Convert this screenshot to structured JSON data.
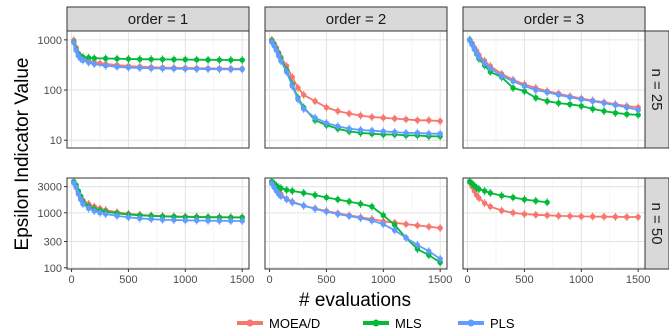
{
  "chart_data": {
    "type": "line",
    "ylabel": "Epsilon Indicator Value",
    "xlabel": "# evaluations",
    "y_scale": "log",
    "x_ticks": [
      "0",
      "500",
      "1000",
      "1500"
    ],
    "col_strips": [
      "order = 1",
      "order = 2",
      "order = 3"
    ],
    "row_strips": [
      "n = 25",
      "n = 50"
    ],
    "rows": [
      {
        "ylim": [
          7,
          1500
        ],
        "y_ticks": [
          10,
          100,
          1000
        ],
        "y_tick_labels": [
          "10",
          "100",
          "1000"
        ]
      },
      {
        "ylim": [
          95,
          4300
        ],
        "y_ticks": [
          100,
          300,
          1000,
          3000
        ],
        "y_tick_labels": [
          "100",
          "300",
          "1000",
          "3000"
        ]
      }
    ],
    "xlim": [
      -40,
      1560
    ],
    "legend": {
      "position": "bottom",
      "entries": [
        "MOEA/D",
        "MLS",
        "PLS"
      ]
    },
    "colors": {
      "MOEA/D": "#F8766D",
      "MLS": "#00BA38",
      "PLS": "#619CFF"
    },
    "panels": [
      {
        "row": 0,
        "col": 0,
        "series": [
          {
            "name": "MOEA/D",
            "x": [
              20,
              40,
              60,
              80,
              100,
              150,
              200,
              250,
              300,
              400,
              500,
              600,
              700,
              800,
              900,
              1000,
              1100,
              1200,
              1300,
              1400,
              1500
            ],
            "y": [
              980,
              700,
              540,
              460,
              420,
              380,
              355,
              340,
              330,
              315,
              300,
              292,
              285,
              280,
              277,
              275,
              272,
              270,
              268,
              266,
              265
            ]
          },
          {
            "name": "MLS",
            "x": [
              20,
              40,
              60,
              80,
              100,
              150,
              200,
              300,
              400,
              500,
              600,
              700,
              800,
              900,
              1000,
              1100,
              1200,
              1300,
              1400,
              1500
            ],
            "y": [
              900,
              650,
              520,
              470,
              450,
              440,
              430,
              425,
              420,
              415,
              412,
              410,
              408,
              406,
              404,
              402,
              400,
              398,
              396,
              395
            ]
          },
          {
            "name": "PLS",
            "x": [
              20,
              40,
              60,
              80,
              100,
              150,
              200,
              300,
              400,
              500,
              600,
              700,
              800,
              900,
              1000,
              1100,
              1200,
              1300,
              1400,
              1500
            ],
            "y": [
              880,
              620,
              480,
              420,
              390,
              355,
              330,
              305,
              290,
              280,
              275,
              270,
              268,
              266,
              264,
              262,
              261,
              260,
              259,
              258
            ]
          }
        ]
      },
      {
        "row": 0,
        "col": 1,
        "series": [
          {
            "name": "MOEA/D",
            "x": [
              20,
              40,
              60,
              80,
              100,
              150,
              200,
              250,
              300,
              400,
              500,
              600,
              700,
              800,
              900,
              1000,
              1100,
              1200,
              1300,
              1400,
              1500
            ],
            "y": [
              1000,
              850,
              700,
              560,
              450,
              300,
              180,
              110,
              80,
              60,
              45,
              38,
              34,
              31,
              29,
              28,
              27,
              26,
              25,
              25,
              24
            ]
          },
          {
            "name": "MLS",
            "x": [
              20,
              40,
              60,
              80,
              100,
              150,
              200,
              250,
              300,
              400,
              500,
              600,
              700,
              800,
              900,
              1000,
              1100,
              1200,
              1300,
              1400,
              1500
            ],
            "y": [
              950,
              800,
              650,
              520,
              420,
              250,
              130,
              70,
              45,
              25,
              20,
              17,
              15,
              14,
              13.5,
              13,
              13,
              12.5,
              12.5,
              12,
              12
            ]
          },
          {
            "name": "PLS",
            "x": [
              20,
              40,
              60,
              80,
              100,
              150,
              200,
              250,
              300,
              400,
              500,
              600,
              700,
              800,
              900,
              1000,
              1100,
              1200,
              1300,
              1400,
              1500
            ],
            "y": [
              900,
              760,
              620,
              480,
              380,
              230,
              120,
              65,
              42,
              28,
              22,
              19,
              17,
              16,
              15.5,
              15,
              14.5,
              14,
              14,
              13.5,
              13.5
            ]
          }
        ]
      },
      {
        "row": 0,
        "col": 2,
        "series": [
          {
            "name": "MOEA/D",
            "x": [
              20,
              40,
              60,
              80,
              100,
              150,
              200,
              300,
              400,
              500,
              600,
              700,
              800,
              900,
              1000,
              1100,
              1200,
              1300,
              1400,
              1500
            ],
            "y": [
              1000,
              850,
              700,
              600,
              500,
              380,
              300,
              210,
              160,
              130,
              110,
              95,
              85,
              75,
              68,
              62,
              57,
              52,
              48,
              45
            ]
          },
          {
            "name": "MLS",
            "x": [
              20,
              40,
              60,
              80,
              100,
              150,
              200,
              300,
              400,
              500,
              600,
              700,
              800,
              900,
              1000,
              1100,
              1200,
              1300,
              1400,
              1500
            ],
            "y": [
              1000,
              820,
              650,
              520,
              420,
              310,
              230,
              180,
              110,
              95,
              70,
              60,
              55,
              52,
              48,
              42,
              38,
              35,
              33,
              32
            ]
          },
          {
            "name": "PLS",
            "x": [
              20,
              40,
              60,
              80,
              100,
              150,
              200,
              300,
              400,
              500,
              600,
              700,
              800,
              900,
              1000,
              1100,
              1200,
              1300,
              1400,
              1500
            ],
            "y": [
              980,
              800,
              660,
              540,
              450,
              340,
              270,
              190,
              150,
              120,
              100,
              90,
              80,
              72,
              65,
              60,
              55,
              50,
              45,
              40
            ]
          }
        ]
      },
      {
        "row": 1,
        "col": 0,
        "series": [
          {
            "name": "MOEA/D",
            "x": [
              20,
              40,
              60,
              80,
              100,
              150,
              200,
              250,
              300,
              400,
              500,
              600,
              700,
              800,
              900,
              1000,
              1100,
              1200,
              1300,
              1400,
              1500
            ],
            "y": [
              3600,
              3100,
              2400,
              2000,
              1700,
              1450,
              1300,
              1200,
              1120,
              1020,
              960,
              920,
              890,
              870,
              860,
              850,
              845,
              840,
              835,
              830,
              828
            ]
          },
          {
            "name": "MLS",
            "x": [
              20,
              40,
              60,
              80,
              100,
              150,
              200,
              250,
              300,
              400,
              500,
              600,
              700,
              800,
              900,
              1000,
              1100,
              1200,
              1300,
              1400,
              1500
            ],
            "y": [
              3700,
              3200,
              2500,
              2000,
              1600,
              1300,
              1180,
              1100,
              1050,
              980,
              930,
              900,
              880,
              860,
              850,
              840,
              835,
              830,
              828,
              825,
              822
            ]
          },
          {
            "name": "PLS",
            "x": [
              20,
              40,
              60,
              80,
              100,
              150,
              200,
              250,
              300,
              400,
              500,
              600,
              700,
              800,
              900,
              1000,
              1100,
              1200,
              1300,
              1400,
              1500
            ],
            "y": [
              3500,
              2900,
              2200,
              1750,
              1450,
              1200,
              1080,
              1000,
              950,
              880,
              830,
              790,
              770,
              750,
              740,
              730,
              725,
              720,
              715,
              712,
              710
            ]
          }
        ]
      },
      {
        "row": 1,
        "col": 1,
        "series": [
          {
            "name": "MOEA/D",
            "x": [
              20,
              40,
              60,
              80,
              100,
              150,
              200,
              300,
              400,
              500,
              600,
              700,
              800,
              900,
              1000,
              1100,
              1200,
              1300,
              1400,
              1500
            ],
            "y": [
              3600,
              3100,
              2700,
              2400,
              2200,
              1800,
              1600,
              1350,
              1200,
              1080,
              980,
              900,
              830,
              770,
              700,
              660,
              620,
              590,
              560,
              530
            ]
          },
          {
            "name": "MLS",
            "x": [
              20,
              40,
              60,
              80,
              100,
              150,
              200,
              300,
              400,
              500,
              600,
              700,
              800,
              900,
              1000,
              1100,
              1200,
              1300,
              1400,
              1500
            ],
            "y": [
              3700,
              3400,
              3100,
              2900,
              2800,
              2600,
              2500,
              2300,
              2100,
              1900,
              1750,
              1600,
              1450,
              1300,
              900,
              600,
              350,
              220,
              170,
              125
            ]
          },
          {
            "name": "PLS",
            "x": [
              20,
              40,
              60,
              80,
              100,
              150,
              200,
              300,
              400,
              500,
              600,
              700,
              800,
              900,
              1000,
              1100,
              1200,
              1300,
              1400,
              1500
            ],
            "y": [
              3400,
              2900,
              2500,
              2200,
              2000,
              1750,
              1550,
              1350,
              1180,
              1050,
              950,
              870,
              800,
              720,
              620,
              480,
              350,
              260,
              200,
              145
            ]
          }
        ]
      },
      {
        "row": 1,
        "col": 2,
        "series": [
          {
            "name": "MOEA/D",
            "x": [
              20,
              40,
              60,
              80,
              100,
              150,
              200,
              300,
              400,
              500,
              600,
              700,
              800,
              900,
              1000,
              1100,
              1200,
              1300,
              1400,
              1500
            ],
            "y": [
              3600,
              3000,
              2500,
              2100,
              1850,
              1500,
              1300,
              1100,
              1000,
              950,
              920,
              900,
              880,
              870,
              860,
              855,
              850,
              845,
              840,
              838
            ]
          },
          {
            "name": "MLS",
            "x": [
              20,
              40,
              60,
              80,
              100,
              150,
              200,
              300,
              400,
              500,
              600,
              700
            ],
            "y": [
              3700,
              3400,
              3100,
              2850,
              2700,
              2500,
              2300,
              2050,
              1900,
              1750,
              1650,
              1550
            ]
          }
        ]
      }
    ]
  }
}
